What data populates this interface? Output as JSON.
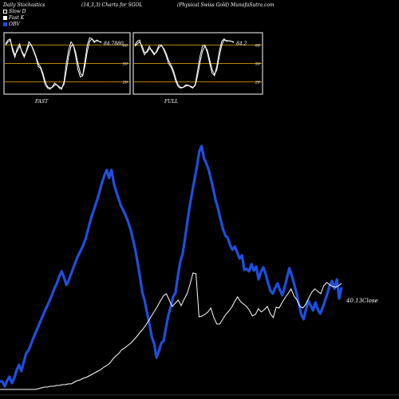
{
  "header": {
    "left": "Daily Stochastics",
    "center": "(14,3,3) Charts for SGOL",
    "right": "(Physical Swiss Gold) MunafaSutra.com"
  },
  "legend": [
    {
      "label": "Slow  D",
      "swatch": "outline"
    },
    {
      "label": "Fast K",
      "swatch": "white"
    },
    {
      "label": "OBV",
      "swatch": "blue"
    }
  ],
  "colors": {
    "background": "#000000",
    "obv_line": "#1f4fe0",
    "close_line": "#ffffff",
    "stoch_level_line": "#b8860b",
    "panel_border": "#ffffff"
  },
  "chart_data": [
    {
      "type": "line",
      "title": "",
      "xlabel": "FAST",
      "ylabel": "",
      "ylim": [
        0,
        100
      ],
      "levels": [
        80,
        50,
        20
      ],
      "tick_labels": [
        "80",
        "50",
        "20"
      ],
      "last_value_label": "84.7880",
      "series": [
        {
          "values": [
            82,
            88,
            90,
            70,
            60,
            75,
            82,
            68,
            60,
            72,
            85,
            80,
            70,
            60,
            45,
            42,
            30,
            15,
            10,
            8,
            12,
            18,
            15,
            10,
            8,
            20,
            50,
            72,
            85,
            80,
            62,
            40,
            28,
            30,
            55,
            80,
            92,
            90,
            84,
            88,
            86,
            84
          ]
        },
        {
          "values": [
            80,
            85,
            88,
            75,
            64,
            70,
            78,
            70,
            63,
            70,
            80,
            80,
            72,
            62,
            50,
            44,
            34,
            20,
            12,
            10,
            11,
            15,
            15,
            12,
            10,
            16,
            38,
            62,
            78,
            80,
            68,
            50,
            34,
            30,
            46,
            70,
            86,
            90,
            86,
            87,
            86,
            85
          ]
        }
      ]
    },
    {
      "type": "line",
      "title": "",
      "xlabel": "FULL",
      "ylabel": "",
      "ylim": [
        0,
        100
      ],
      "levels": [
        80,
        50,
        20
      ],
      "tick_labels": [
        "80",
        "50",
        "20"
      ],
      "last_value_label": "84.2",
      "series": [
        {
          "values": [
            80,
            86,
            88,
            74,
            64,
            70,
            78,
            70,
            64,
            70,
            80,
            80,
            72,
            62,
            50,
            44,
            34,
            20,
            12,
            10,
            11,
            15,
            15,
            12,
            10,
            16,
            38,
            62,
            78,
            80,
            68,
            50,
            34,
            30,
            46,
            70,
            86,
            90,
            86,
            87,
            86,
            84
          ]
        },
        {
          "values": [
            78,
            82,
            85,
            78,
            68,
            68,
            74,
            72,
            66,
            68,
            76,
            79,
            74,
            66,
            55,
            47,
            38,
            25,
            15,
            11,
            11,
            13,
            14,
            13,
            11,
            14,
            30,
            52,
            70,
            78,
            72,
            56,
            40,
            32,
            40,
            62,
            80,
            88,
            87,
            87,
            86,
            85
          ]
        }
      ]
    },
    {
      "type": "line",
      "title": "",
      "xlabel": "",
      "ylabel": "",
      "series": [
        {
          "name": "OBV",
          "color": "#1f4fe0",
          "values": [
            10,
            10,
            4,
            11,
            16,
            8,
            14,
            24,
            31,
            23,
            34,
            45,
            49,
            56,
            64,
            71,
            78,
            85,
            92,
            99,
            105,
            112,
            119,
            127,
            133,
            142,
            148,
            140,
            131,
            137,
            145,
            153,
            161,
            168,
            174,
            180,
            188,
            199,
            210,
            220,
            229,
            238,
            248,
            259,
            268,
            275,
            265,
            275,
            258,
            248,
            239,
            230,
            224,
            218,
            210,
            201,
            189,
            176,
            159,
            141,
            122,
            111,
            96,
            82,
            66,
            57,
            40,
            48,
            58,
            61,
            78,
            93,
            104,
            116,
            121,
            142,
            160,
            170,
            189,
            210,
            230,
            247,
            263,
            279,
            298,
            305,
            290,
            283,
            275,
            263,
            250,
            236,
            226,
            213,
            201,
            193,
            190,
            181,
            175,
            179,
            172,
            164,
            168,
            150,
            151,
            148,
            157,
            149,
            154,
            138,
            147,
            153,
            145,
            133,
            124,
            120,
            127,
            133,
            125,
            118,
            128,
            140,
            152,
            143,
            132,
            121,
            107,
            94,
            88,
            100,
            111,
            105,
            99,
            109,
            100,
            95,
            102,
            111,
            120,
            130,
            136,
            126,
            138,
            114,
            128
          ]
        },
        {
          "name": "Close",
          "label": "40.13Close",
          "color": "#ffffff",
          "values": [
            0,
            0,
            0,
            0,
            0,
            0,
            0,
            0,
            0,
            0,
            0,
            0,
            0,
            1,
            2,
            3,
            3,
            4,
            4,
            5,
            5,
            6,
            6,
            7,
            7,
            9,
            11,
            12,
            14,
            15,
            17,
            19,
            21,
            23,
            25,
            28,
            30,
            33,
            38,
            42,
            45,
            50,
            52,
            55,
            58,
            62,
            66,
            71,
            75,
            80,
            86,
            92,
            98,
            104,
            111,
            117,
            120,
            112,
            104,
            108,
            112,
            105,
            113,
            120,
            132,
            146,
            145,
            91,
            92,
            94,
            97,
            102,
            90,
            82,
            82,
            88,
            94,
            98,
            103,
            110,
            116,
            110,
            107,
            104,
            99,
            92,
            94,
            101,
            97,
            100,
            104,
            95,
            90,
            103,
            102,
            109,
            115,
            120,
            126,
            117,
            112,
            104,
            102,
            107,
            115,
            122,
            126,
            123,
            120,
            130,
            134,
            131,
            129,
            128,
            130,
            133
          ]
        }
      ]
    }
  ]
}
